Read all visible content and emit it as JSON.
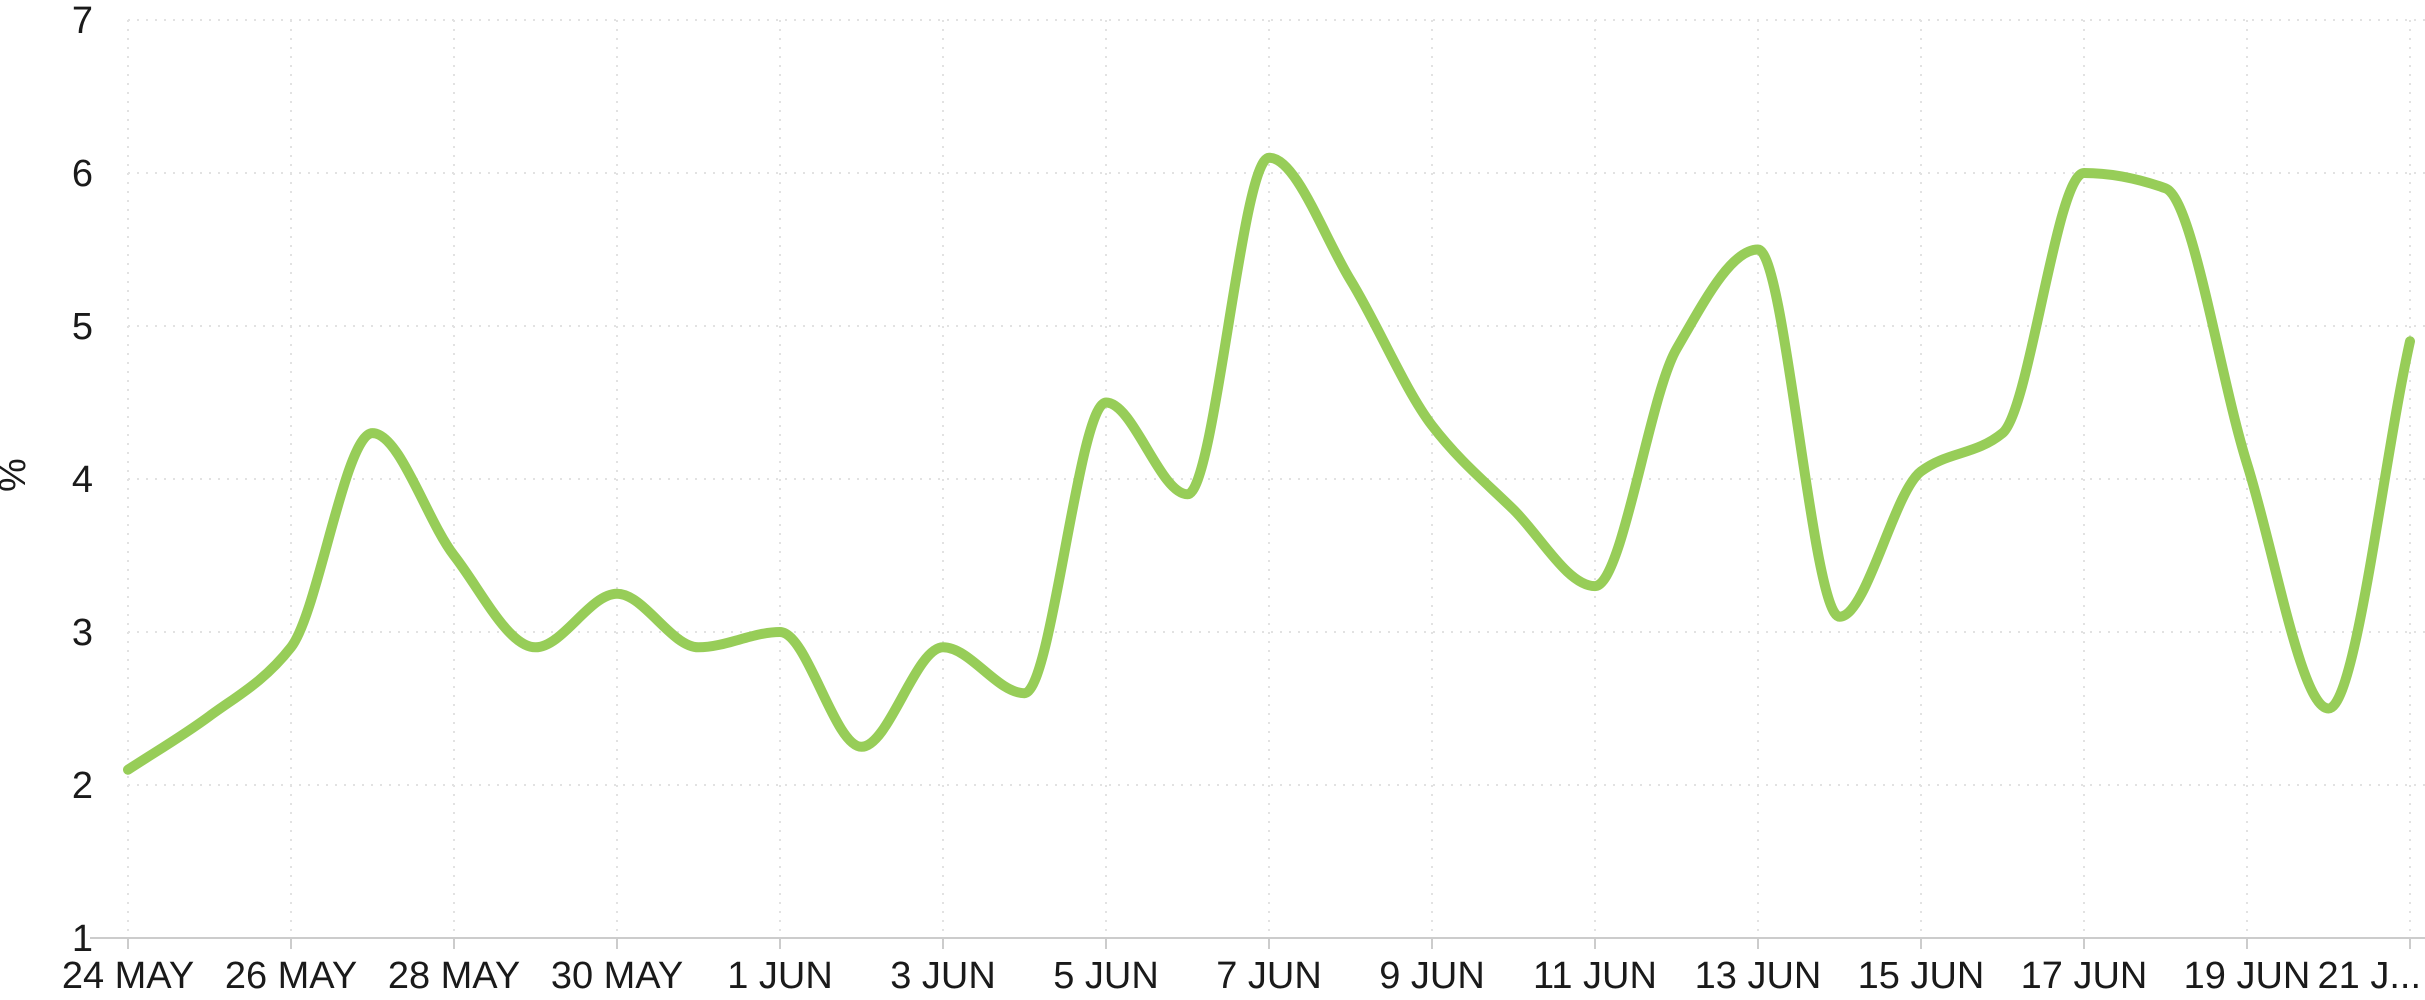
{
  "chart_data": {
    "type": "line",
    "title": "",
    "xlabel": "",
    "ylabel": "%",
    "ylim": [
      1,
      7
    ],
    "yticks": [
      1,
      2,
      3,
      4,
      5,
      6,
      7
    ],
    "grid": "dotted",
    "legend": "none",
    "x_tick_labels": [
      "24 MAY",
      "26 MAY",
      "28 MAY",
      "30 MAY",
      "1 JUN",
      "3 JUN",
      "5 JUN",
      "7 JUN",
      "9 JUN",
      "11 JUN",
      "13 JUN",
      "15 JUN",
      "17 JUN",
      "19 JUN",
      "21 J..."
    ],
    "series": [
      {
        "color": "#97cd58",
        "interpolation": "monotone",
        "x": [
          "24 MAY",
          "25 MAY",
          "26 MAY",
          "27 MAY",
          "28 MAY",
          "29 MAY",
          "30 MAY",
          "31 MAY",
          "1 JUN",
          "2 JUN",
          "3 JUN",
          "4 JUN",
          "5 JUN",
          "6 JUN",
          "7 JUN",
          "8 JUN",
          "9 JUN",
          "10 JUN",
          "11 JUN",
          "12 JUN",
          "13 JUN",
          "14 JUN",
          "15 JUN",
          "16 JUN",
          "17 JUN",
          "18 JUN",
          "19 JUN",
          "20 JUN",
          "21 JUN"
        ],
        "values": [
          2.1,
          2.45,
          2.9,
          4.3,
          3.5,
          2.9,
          3.25,
          2.9,
          3.0,
          2.25,
          2.9,
          2.6,
          4.5,
          3.9,
          6.1,
          5.3,
          4.35,
          3.8,
          3.3,
          4.85,
          5.5,
          3.1,
          4.05,
          4.3,
          6.0,
          5.9,
          4.1,
          2.5,
          4.9
        ]
      }
    ],
    "colors": {
      "line": "#97cd58",
      "grid": "#e2e2e2",
      "axis": "#cccccc",
      "text": "#1a1a1a",
      "background": "#ffffff"
    }
  }
}
